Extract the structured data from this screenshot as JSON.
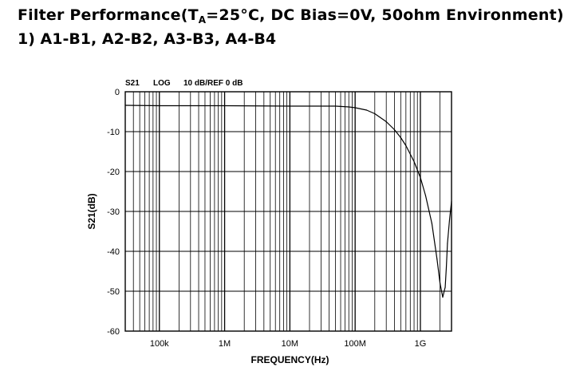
{
  "heading": {
    "prefix": "Filter Performance(T",
    "subscript": "A",
    "suffix": "=25°C, DC Bias=0V, 50ohm Environment)",
    "subtitle": "1) A1-B1, A2-B2, A3-B3, A4-B4"
  },
  "chart_data": {
    "type": "line",
    "scale_x": "log",
    "header_labels": [
      "S21",
      "LOG",
      "10 dB/REF 0 dB"
    ],
    "xlabel": "FREQUENCY(Hz)",
    "ylabel": "S21(dB)",
    "xlim": [
      30000,
      3000000000
    ],
    "ylim": [
      -60,
      0
    ],
    "grid": true,
    "x_ticks": [
      {
        "value": 100000,
        "label": "100k"
      },
      {
        "value": 1000000,
        "label": "1M"
      },
      {
        "value": 10000000,
        "label": "10M"
      },
      {
        "value": 100000000,
        "label": "100M"
      },
      {
        "value": 1000000000,
        "label": "1G"
      }
    ],
    "y_ticks": [
      {
        "value": 0,
        "label": "0"
      },
      {
        "value": -10,
        "label": "-10"
      },
      {
        "value": -20,
        "label": "-20"
      },
      {
        "value": -30,
        "label": "-30"
      },
      {
        "value": -40,
        "label": "-40"
      },
      {
        "value": -50,
        "label": "-50"
      },
      {
        "value": -60,
        "label": "-60"
      }
    ],
    "series": [
      {
        "color": "#000000",
        "x": [
          30000,
          100000,
          1000000,
          10000000,
          50000000,
          80000000,
          100000000,
          150000000,
          200000000,
          300000000,
          400000000,
          500000000,
          600000000,
          800000000,
          1000000000,
          1200000000,
          1500000000,
          1800000000,
          2000000000,
          2200000000,
          2400000000,
          2500000000,
          2600000000,
          2800000000,
          3000000000
        ],
        "y": [
          -3.4,
          -3.5,
          -3.5,
          -3.6,
          -3.6,
          -3.8,
          -4.0,
          -4.6,
          -5.5,
          -7.5,
          -9.5,
          -11.5,
          -13.5,
          -17.5,
          -21.5,
          -26,
          -33,
          -42,
          -48,
          -51.5,
          -49,
          -44,
          -38,
          -32,
          -27.5
        ]
      }
    ]
  }
}
